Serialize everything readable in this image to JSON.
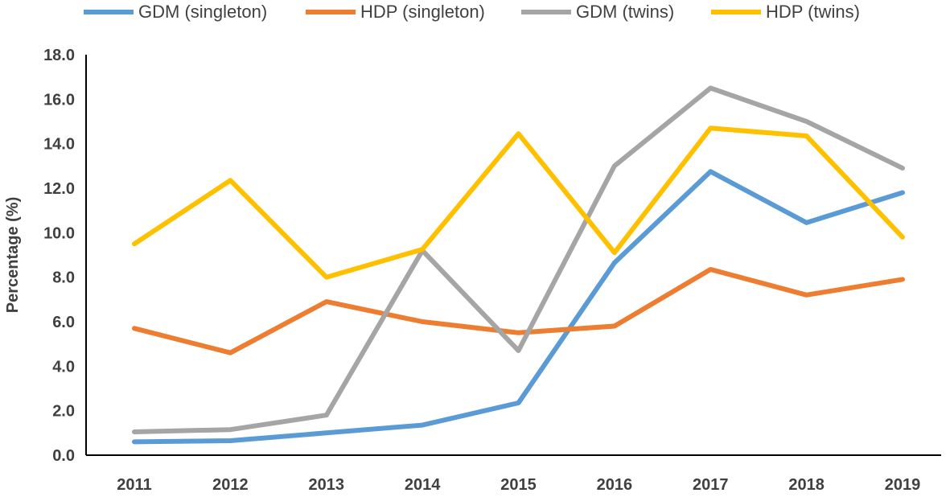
{
  "chart_data": {
    "type": "line",
    "title": "",
    "xlabel": "",
    "ylabel": "Percentage (%)",
    "ylim": [
      0,
      18
    ],
    "ytick_step": 2,
    "ytick_labels": [
      "0.0",
      "2.0",
      "4.0",
      "6.0",
      "8.0",
      "10.0",
      "12.0",
      "14.0",
      "16.0",
      "18.0"
    ],
    "categories": [
      "2011",
      "2012",
      "2013",
      "2014",
      "2015",
      "2016",
      "2017",
      "2018",
      "2019"
    ],
    "legend_position": "top",
    "series": [
      {
        "name": "GDM (singleton)",
        "color": "#5B9BD5",
        "values": [
          0.6,
          0.65,
          1.0,
          1.35,
          2.35,
          8.65,
          12.75,
          10.45,
          11.8
        ]
      },
      {
        "name": "HDP (singleton)",
        "color": "#ED7D31",
        "values": [
          5.7,
          4.6,
          6.9,
          6.0,
          5.5,
          5.8,
          8.35,
          7.2,
          7.9
        ]
      },
      {
        "name": "GDM (twins)",
        "color": "#A5A5A5",
        "values": [
          1.05,
          1.15,
          1.8,
          9.2,
          4.7,
          13.0,
          16.5,
          15.0,
          12.9
        ]
      },
      {
        "name": "HDP (twins)",
        "color": "#FFC000",
        "values": [
          9.5,
          12.35,
          8.0,
          9.25,
          14.45,
          9.1,
          14.7,
          14.35,
          9.8
        ]
      }
    ]
  }
}
